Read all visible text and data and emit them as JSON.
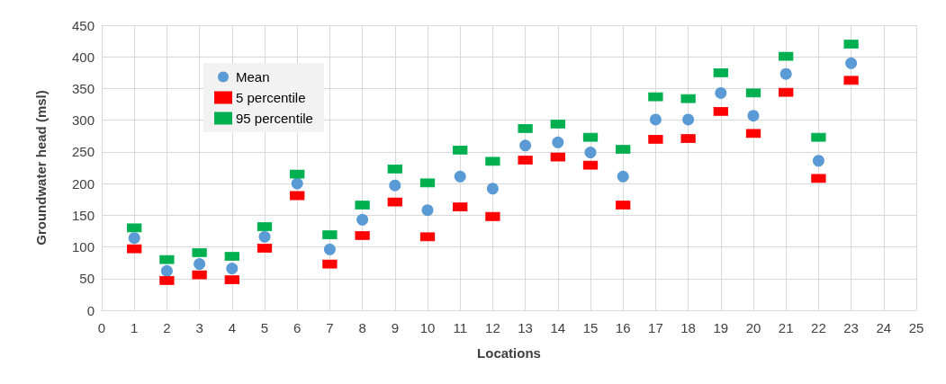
{
  "chart_data": {
    "type": "scatter",
    "xlabel": "Locations",
    "ylabel": "Groundwater head (msl)",
    "x": [
      1,
      2,
      3,
      4,
      5,
      6,
      7,
      8,
      9,
      10,
      11,
      12,
      13,
      14,
      15,
      16,
      17,
      18,
      19,
      20,
      21,
      22,
      23
    ],
    "series": [
      {
        "name": "Mean",
        "color": "#5b9bd5",
        "marker": "circle",
        "values": [
          114,
          62,
          73,
          66,
          116,
          200,
          96,
          143,
          197,
          158,
          211,
          192,
          260,
          265,
          249,
          211,
          301,
          301,
          343,
          307,
          373,
          236,
          390
        ]
      },
      {
        "name": "5 percentile",
        "color": "#ff0000",
        "marker": "square",
        "values": [
          97,
          47,
          56,
          48,
          98,
          181,
          73,
          118,
          171,
          116,
          163,
          148,
          237,
          242,
          229,
          166,
          270,
          271,
          314,
          279,
          344,
          208,
          363
        ]
      },
      {
        "name": "95 percentile",
        "color": "#00b050",
        "marker": "square",
        "values": [
          130,
          80,
          91,
          85,
          132,
          215,
          119,
          166,
          223,
          201,
          253,
          235,
          287,
          294,
          273,
          254,
          337,
          334,
          375,
          343,
          401,
          273,
          420
        ]
      }
    ],
    "xlim": [
      0,
      25
    ],
    "xticks": [
      0,
      1,
      2,
      3,
      4,
      5,
      6,
      7,
      8,
      9,
      10,
      11,
      12,
      13,
      14,
      15,
      16,
      17,
      18,
      19,
      20,
      21,
      22,
      23,
      24,
      25
    ],
    "ylim": [
      0,
      450
    ],
    "yticks": [
      0,
      50,
      100,
      150,
      200,
      250,
      300,
      350,
      400,
      450
    ],
    "grid": true,
    "legend": "top left"
  }
}
